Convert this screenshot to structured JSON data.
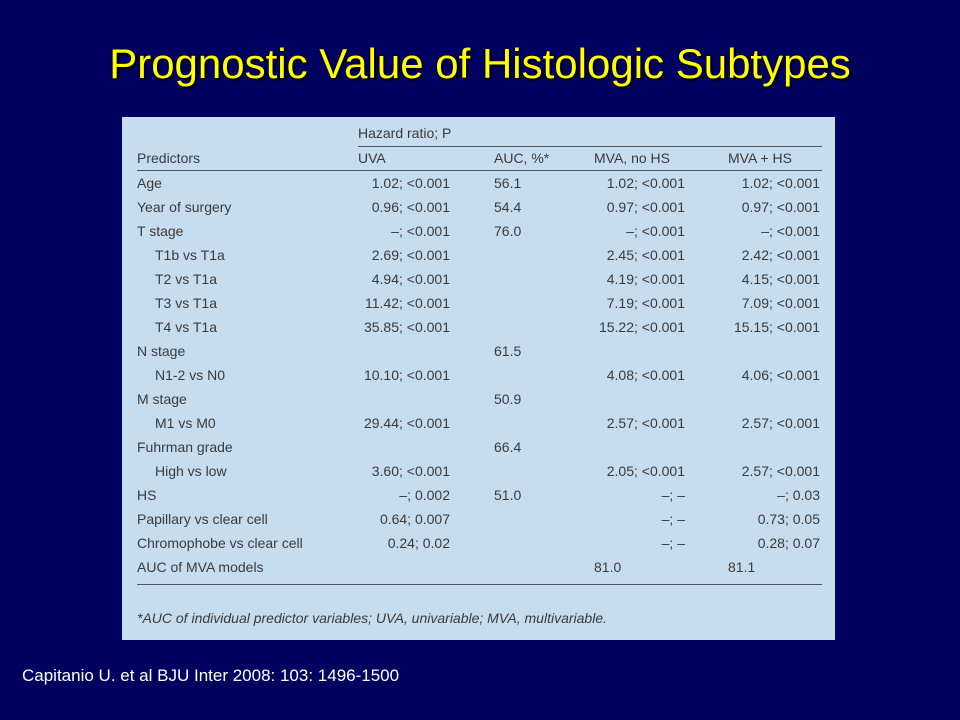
{
  "slide": {
    "title": "Prognostic Value of Histologic Subtypes",
    "citation": "Capitanio U. et al BJU Inter 2008: 103: 1496-1500",
    "table": {
      "group_header": "Hazard ratio; P",
      "columns": [
        "Predictors",
        "UVA",
        "AUC, %*",
        "MVA, no HS",
        "MVA + HS"
      ],
      "rows": [
        [
          "Age",
          "1.02; <0.001",
          "56.1",
          "1.02; <0.001",
          "1.02; <0.001"
        ],
        [
          "Year of surgery",
          "0.96; <0.001",
          "54.4",
          "0.97; <0.001",
          "0.97; <0.001"
        ],
        [
          "T stage",
          "–; <0.001",
          "76.0",
          "–; <0.001",
          "–; <0.001"
        ],
        [
          "T1b vs T1a",
          "2.69; <0.001",
          null,
          "2.45; <0.001",
          "2.42; <0.001"
        ],
        [
          "T2 vs T1a",
          "4.94; <0.001",
          null,
          "4.19; <0.001",
          "4.15; <0.001"
        ],
        [
          "T3 vs T1a",
          "11.42; <0.001",
          null,
          "7.19; <0.001",
          "7.09; <0.001"
        ],
        [
          "T4 vs T1a",
          "35.85; <0.001",
          null,
          "15.22; <0.001",
          "15.15; <0.001"
        ],
        [
          "N stage",
          null,
          "61.5",
          null,
          null
        ],
        [
          "N1-2 vs N0",
          "10.10; <0.001",
          null,
          "4.08; <0.001",
          "4.06; <0.001"
        ],
        [
          "M stage",
          null,
          "50.9",
          null,
          null
        ],
        [
          "M1 vs M0",
          "29.44; <0.001",
          null,
          "2.57; <0.001",
          "2.57; <0.001"
        ],
        [
          "Fuhrman grade",
          null,
          "66.4",
          null,
          null
        ],
        [
          "High vs low",
          "3.60; <0.001",
          null,
          "2.05; <0.001",
          "2.57; <0.001"
        ],
        [
          "HS",
          "–; 0.002",
          "51.0",
          "–; –",
          "–; 0.03"
        ],
        [
          "Papillary vs clear cell",
          "0.64; 0.007",
          null,
          "–; –",
          "0.73; 0.05"
        ],
        [
          "Chromophobe vs clear cell",
          "0.24; 0.02",
          null,
          "–; –",
          "0.28; 0.07"
        ],
        [
          "AUC of MVA models",
          null,
          null,
          "81.0",
          "81.1"
        ]
      ],
      "footnote": "*AUC of individual predictor variables; UVA, univariable; MVA, multivariable."
    }
  }
}
